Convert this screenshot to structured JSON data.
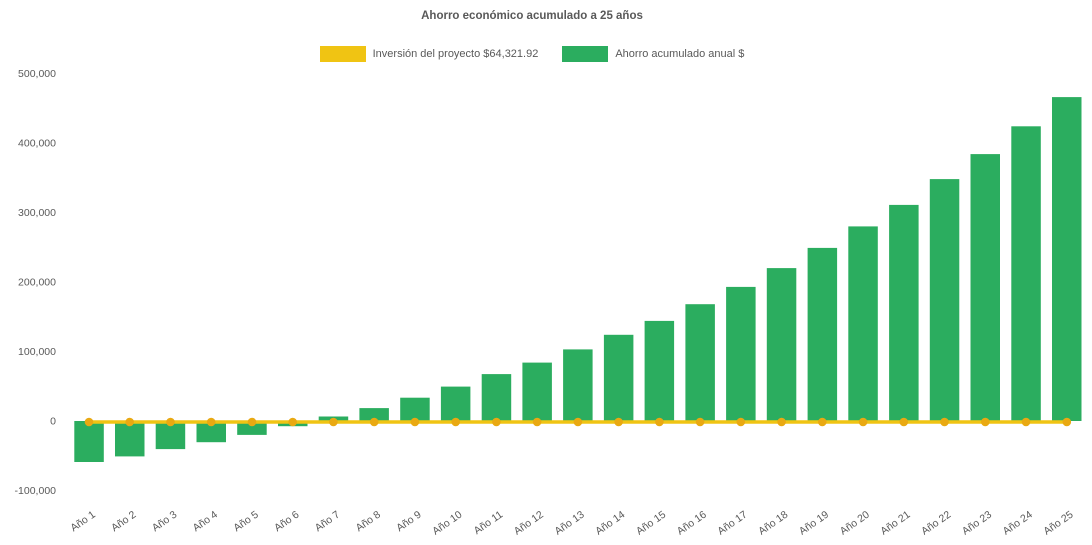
{
  "title": "Ahorro económico acumulado a 25 años",
  "legend": {
    "items": [
      {
        "label": "Inversión del proyecto $64,321.92",
        "color": "#F0C413"
      },
      {
        "label": "Ahorro acumulado anual $",
        "color": "#2BAD5F"
      }
    ]
  },
  "chart_data": {
    "type": "bar",
    "title": "Ahorro económico acumulado a 25 años",
    "categories": [
      "Año 1",
      "Año 2",
      "Año 3",
      "Año 4",
      "Año 5",
      "Año 6",
      "Año 7",
      "Año 8",
      "Año 9",
      "Año 10",
      "Año 11",
      "Año 12",
      "Año 13",
      "Año 14",
      "Año 15",
      "Año 16",
      "Año 17",
      "Año 18",
      "Año 19",
      "Año 20",
      "Año 21",
      "Año 22",
      "Año 23",
      "Año 24",
      "Año 25"
    ],
    "series": [
      {
        "name": "Ahorro acumulado anual $",
        "type": "bar",
        "color": "#2BAD5F",
        "values": [
          -59000,
          -51000,
          -40500,
          -30500,
          -20000,
          -7500,
          6500,
          18500,
          33500,
          49500,
          67500,
          84000,
          103000,
          124000,
          144000,
          168000,
          193000,
          220000,
          249000,
          280000,
          311000,
          348000,
          384000,
          424000,
          466000
        ]
      },
      {
        "name": "Inversión del proyecto $64,321.92",
        "type": "line",
        "color": "#F0C413",
        "marker_color": "#E9A912",
        "values": [
          0,
          0,
          0,
          0,
          0,
          0,
          0,
          0,
          0,
          0,
          0,
          0,
          0,
          0,
          0,
          0,
          0,
          0,
          0,
          0,
          0,
          0,
          0,
          0,
          0
        ]
      }
    ],
    "xlabel": "",
    "ylabel": "",
    "ylim": [
      -110000,
      510000
    ],
    "yticks": [
      {
        "label": "500,000",
        "value": 500000
      },
      {
        "label": "400,000",
        "value": 400000
      },
      {
        "label": "300,000",
        "value": 300000
      },
      {
        "label": "200,000",
        "value": 200000
      },
      {
        "label": "100,000",
        "value": 100000
      },
      {
        "label": "0",
        "value": 0
      },
      {
        "label": "-100,000",
        "value": -100000
      }
    ],
    "grid": false,
    "legend_position": "top",
    "colors": {
      "text": "#595959",
      "background": "#FFFFFF"
    }
  }
}
